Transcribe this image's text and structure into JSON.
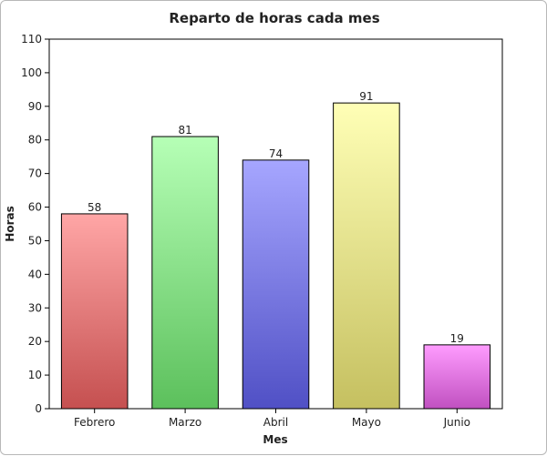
{
  "chart_data": {
    "type": "bar",
    "title": "Reparto de horas cada mes",
    "xlabel": "Mes",
    "ylabel": "Horas",
    "categories": [
      "Febrero",
      "Marzo",
      "Abril",
      "Mayo",
      "Junio"
    ],
    "values": [
      58,
      81,
      74,
      91,
      19
    ],
    "ylim": [
      0,
      110
    ],
    "yticks": [
      0,
      10,
      20,
      30,
      40,
      50,
      60,
      70,
      80,
      90,
      100,
      110
    ],
    "grid": false,
    "legend": "none",
    "bar_colors": [
      {
        "top": "#ffa6a6",
        "bottom": "#c55050"
      },
      {
        "top": "#b6ffb6",
        "bottom": "#5cc05c"
      },
      {
        "top": "#a6a6ff",
        "bottom": "#5050c5"
      },
      {
        "top": "#ffffb6",
        "bottom": "#c5c060"
      },
      {
        "top": "#ff9cff",
        "bottom": "#c050c0"
      }
    ]
  }
}
